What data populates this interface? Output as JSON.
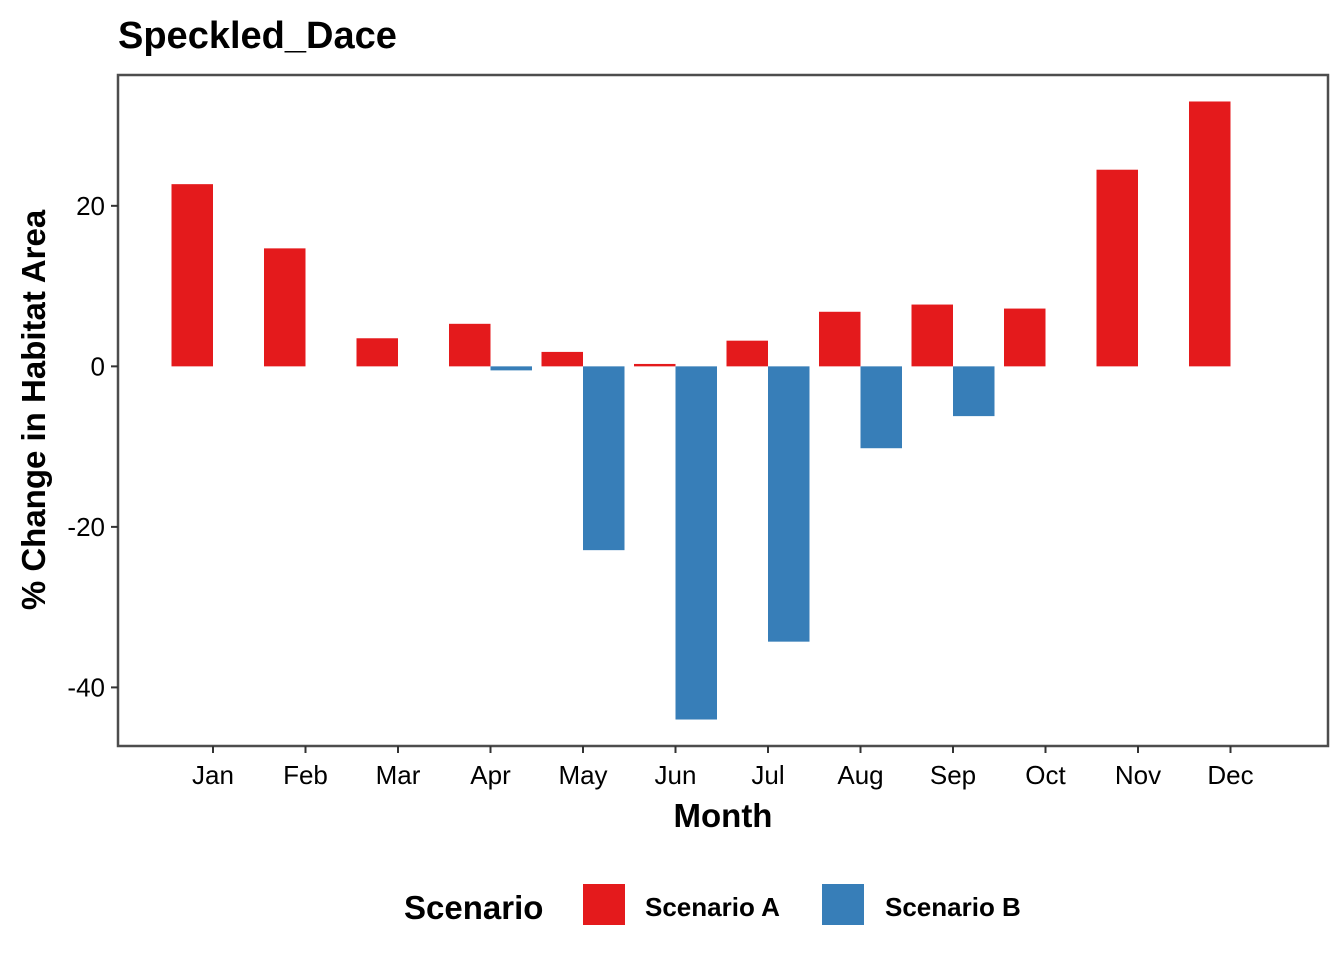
{
  "chart_data": {
    "type": "bar",
    "title": "Speckled_Dace",
    "xlabel": "Month",
    "ylabel": "% Change in Habitat Area",
    "categories": [
      "Jan",
      "Feb",
      "Mar",
      "Apr",
      "May",
      "Jun",
      "Jul",
      "Aug",
      "Sep",
      "Oct",
      "Nov",
      "Dec"
    ],
    "series": [
      {
        "name": "Scenario A",
        "color": "#E41A1C",
        "values": [
          22.7,
          14.7,
          3.5,
          5.3,
          1.8,
          0.3,
          3.2,
          6.8,
          7.7,
          7.2,
          24.5,
          33.0
        ]
      },
      {
        "name": "Scenario B",
        "color": "#377EB8",
        "values": [
          null,
          null,
          null,
          -0.5,
          -22.9,
          -44.0,
          -34.3,
          -10.2,
          -6.2,
          null,
          null,
          null
        ]
      }
    ],
    "ylim": [
      -47.3,
      36.3
    ],
    "yticks": [
      -40,
      -20,
      0,
      20
    ],
    "grid": false,
    "legend": {
      "title": "Scenario",
      "position": "bottom"
    }
  }
}
